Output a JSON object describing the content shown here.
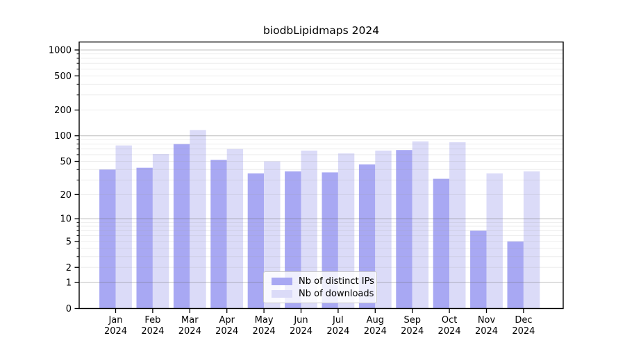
{
  "chart_data": {
    "type": "bar",
    "title": "biodbLipidmaps 2024",
    "categories": [
      "Jan",
      "Feb",
      "Mar",
      "Apr",
      "May",
      "Jun",
      "Jul",
      "Aug",
      "Sep",
      "Oct",
      "Nov",
      "Dec"
    ],
    "x_year_label": "2024",
    "series": [
      {
        "name": "Nb of distinct IPs",
        "color": "#a8a8f3",
        "values": [
          40,
          42,
          80,
          52,
          36,
          38,
          37,
          46,
          68,
          31,
          7,
          5
        ]
      },
      {
        "name": "Nb of downloads",
        "color": "#dbdbf8",
        "values": [
          77,
          61,
          117,
          70,
          50,
          67,
          62,
          67,
          86,
          84,
          36,
          38
        ]
      }
    ],
    "y_scale": "log1p",
    "y_ticks": [
      0,
      1,
      2,
      5,
      10,
      20,
      50,
      100,
      200,
      500,
      1000
    ],
    "ylim": [
      0,
      1100
    ],
    "grid": true,
    "legend_position": "lower-center",
    "colors": {
      "background": "#ffffff",
      "axis": "#000000",
      "grid_major": "#c8c8c8",
      "grid_minor": "#eeeeee",
      "tick_text": "#000000"
    }
  }
}
